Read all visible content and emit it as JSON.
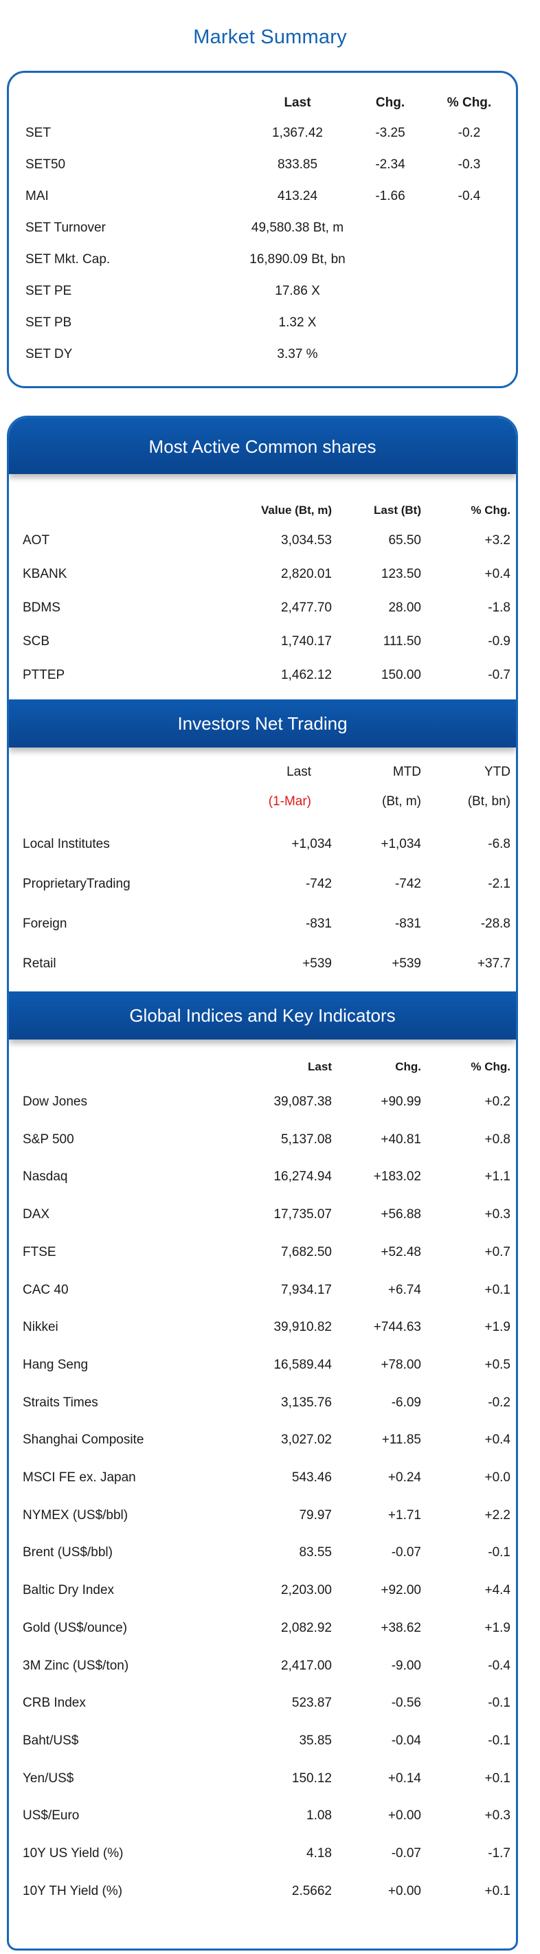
{
  "title": "Market Summary",
  "market_summary": {
    "headers": {
      "last": "Last",
      "chg": "Chg.",
      "pct": "% Chg."
    },
    "rows": [
      {
        "name": "SET",
        "last": "1,367.42",
        "chg": "-3.25",
        "pct": "-0.2"
      },
      {
        "name": "SET50",
        "last": "833.85",
        "chg": "-2.34",
        "pct": "-0.3"
      },
      {
        "name": "MAI",
        "last": "413.24",
        "chg": "-1.66",
        "pct": "-0.4"
      },
      {
        "name": "SET Turnover",
        "last": "49,580.38 Bt, m",
        "chg": "",
        "pct": ""
      },
      {
        "name": "SET Mkt. Cap.",
        "last": "16,890.09 Bt, bn",
        "chg": "",
        "pct": ""
      },
      {
        "name": "SET PE",
        "last": "17.86 X",
        "chg": "",
        "pct": ""
      },
      {
        "name": "SET PB",
        "last": "1.32 X",
        "chg": "",
        "pct": ""
      },
      {
        "name": "SET DY",
        "last": "3.37 %",
        "chg": "",
        "pct": ""
      }
    ]
  },
  "most_active": {
    "title": "Most Active Common shares",
    "headers": {
      "value": "Value (Bt, m)",
      "last": "Last (Bt)",
      "pct": "% Chg."
    },
    "rows": [
      {
        "name": "AOT",
        "value": "3,034.53",
        "last": "65.50",
        "pct": "+3.2"
      },
      {
        "name": "KBANK",
        "value": "2,820.01",
        "last": "123.50",
        "pct": "+0.4"
      },
      {
        "name": "BDMS",
        "value": "2,477.70",
        "last": "28.00",
        "pct": "-1.8"
      },
      {
        "name": "SCB",
        "value": "1,740.17",
        "last": "111.50",
        "pct": "-0.9"
      },
      {
        "name": "PTTEP",
        "value": "1,462.12",
        "last": "150.00",
        "pct": "-0.7"
      }
    ]
  },
  "investors": {
    "title": "Investors Net Trading",
    "headers": {
      "last": "Last",
      "mtd": "MTD",
      "ytd": "YTD",
      "date": "(1-Mar)",
      "mtd_unit": "(Bt, m)",
      "ytd_unit": "(Bt, bn)"
    },
    "rows": [
      {
        "name": "Local Institutes",
        "last": "+1,034",
        "mtd": "+1,034",
        "ytd": "-6.8"
      },
      {
        "name": "ProprietaryTrading",
        "last": "-742",
        "mtd": "-742",
        "ytd": "-2.1"
      },
      {
        "name": "Foreign",
        "last": "-831",
        "mtd": "-831",
        "ytd": "-28.8"
      },
      {
        "name": "Retail",
        "last": "+539",
        "mtd": "+539",
        "ytd": "+37.7"
      }
    ]
  },
  "global": {
    "title": "Global Indices and Key Indicators",
    "headers": {
      "last": "Last",
      "chg": "Chg.",
      "pct": "% Chg."
    },
    "rows": [
      {
        "name": "Dow Jones",
        "last": "39,087.38",
        "chg": "+90.99",
        "pct": "+0.2"
      },
      {
        "name": "S&P 500",
        "last": "5,137.08",
        "chg": "+40.81",
        "pct": "+0.8"
      },
      {
        "name": "Nasdaq",
        "last": "16,274.94",
        "chg": "+183.02",
        "pct": "+1.1"
      },
      {
        "name": "DAX",
        "last": "17,735.07",
        "chg": "+56.88",
        "pct": "+0.3"
      },
      {
        "name": "FTSE",
        "last": "7,682.50",
        "chg": "+52.48",
        "pct": "+0.7"
      },
      {
        "name": "CAC 40",
        "last": "7,934.17",
        "chg": "+6.74",
        "pct": "+0.1"
      },
      {
        "name": "Nikkei",
        "last": "39,910.82",
        "chg": "+744.63",
        "pct": "+1.9"
      },
      {
        "name": "Hang Seng",
        "last": "16,589.44",
        "chg": "+78.00",
        "pct": "+0.5"
      },
      {
        "name": "Straits Times",
        "last": "3,135.76",
        "chg": "-6.09",
        "pct": "-0.2"
      },
      {
        "name": "Shanghai Composite",
        "last": "3,027.02",
        "chg": "+11.85",
        "pct": "+0.4"
      },
      {
        "name": "MSCI FE ex. Japan",
        "last": "543.46",
        "chg": "+0.24",
        "pct": "+0.0"
      },
      {
        "name": "NYMEX (US$/bbl)",
        "last": "79.97",
        "chg": "+1.71",
        "pct": "+2.2"
      },
      {
        "name": "Brent (US$/bbl)",
        "last": "83.55",
        "chg": "-0.07",
        "pct": "-0.1"
      },
      {
        "name": "Baltic Dry Index",
        "last": "2,203.00",
        "chg": "+92.00",
        "pct": "+4.4"
      },
      {
        "name": "Gold (US$/ounce)",
        "last": "2,082.92",
        "chg": "+38.62",
        "pct": "+1.9"
      },
      {
        "name": "3M Zinc (US$/ton)",
        "last": "2,417.00",
        "chg": "-9.00",
        "pct": "-0.4"
      },
      {
        "name": "CRB Index",
        "last": "523.87",
        "chg": "-0.56",
        "pct": "-0.1"
      },
      {
        "name": "Baht/US$",
        "last": "35.85",
        "chg": "-0.04",
        "pct": "-0.1"
      },
      {
        "name": "Yen/US$",
        "last": "150.12",
        "chg": "+0.14",
        "pct": "+0.1"
      },
      {
        "name": "US$/Euro",
        "last": "1.08",
        "chg": "+0.00",
        "pct": "+0.3"
      },
      {
        "name": "10Y US Yield (%)",
        "last": "4.18",
        "chg": "-0.07",
        "pct": "-1.7"
      },
      {
        "name": "10Y TH Yield (%)",
        "last": "2.5662",
        "chg": "+0.00",
        "pct": "+0.1"
      }
    ]
  }
}
